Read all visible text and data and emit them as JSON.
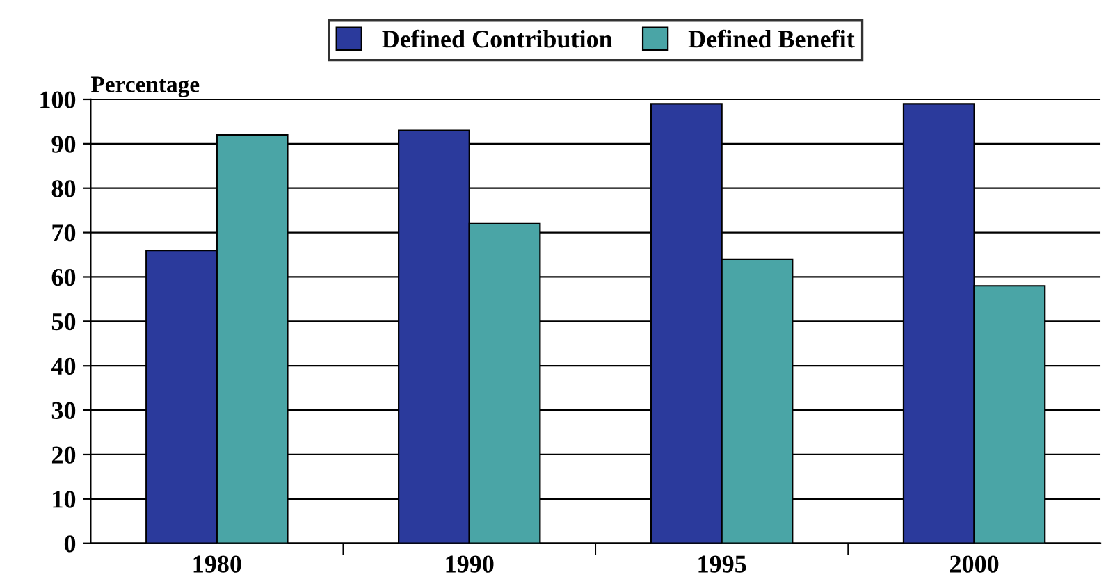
{
  "chart_data": {
    "type": "bar",
    "ylabel": "Percentage",
    "categories": [
      "1980",
      "1990",
      "1995",
      "2000"
    ],
    "series": [
      {
        "name": "Defined Contribution",
        "color": "#2b3a9c",
        "values": [
          66,
          93,
          99,
          99
        ]
      },
      {
        "name": "Defined Benefit",
        "color": "#4aa5a6",
        "values": [
          92,
          72,
          64,
          58
        ]
      }
    ],
    "ylim": [
      0,
      100
    ],
    "yticks": [
      0,
      10,
      20,
      30,
      40,
      50,
      60,
      70,
      80,
      90,
      100
    ],
    "grid": "y",
    "legend": "top"
  }
}
